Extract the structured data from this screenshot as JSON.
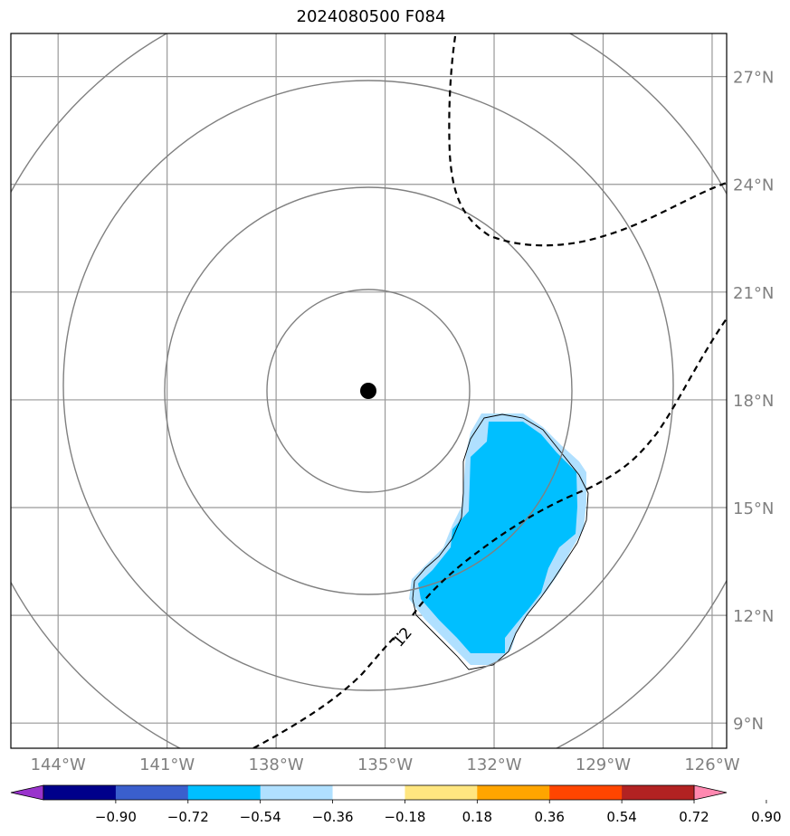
{
  "title": "2024080500 F084",
  "map": {
    "lon_range": [
      -145.3,
      -125.6
    ],
    "lat_range": [
      8.3,
      28.2
    ],
    "lon_ticks": [
      -144,
      -141,
      -138,
      -135,
      -132,
      -129,
      -126
    ],
    "lon_tick_labels": [
      "144°W",
      "141°W",
      "138°W",
      "135°W",
      "132°W",
      "129°W",
      "126°W"
    ],
    "lat_ticks": [
      9,
      12,
      15,
      18,
      21,
      24,
      27
    ],
    "lat_tick_labels": [
      "9°N",
      "12°N",
      "15°N",
      "18°N",
      "21°N",
      "24°N",
      "27°N"
    ],
    "gridlines": true,
    "center_marker": {
      "lon": -135.25,
      "lat": 18.35
    },
    "range_rings": 4,
    "contour_label": "12",
    "colors": {
      "frame": "#000000",
      "grid": "#999999",
      "rings": "#808080",
      "tick_label": "#808080",
      "shade_light": "#b0e0ff",
      "shade_main": "#00bfff"
    }
  },
  "colorbar": {
    "tick_labels": [
      "−0.90",
      "−0.72",
      "−0.54",
      "−0.36",
      "−0.18",
      "0.18",
      "0.36",
      "0.54",
      "0.72",
      "0.90"
    ],
    "bins": [
      "#9933cc",
      "#00008b",
      "#3a5fcd",
      "#00bfff",
      "#b0e0ff",
      "#ffffff",
      "#ffe680",
      "#ffa500",
      "#ff4500",
      "#b22222",
      "#ff88b0"
    ],
    "extend": "both"
  }
}
